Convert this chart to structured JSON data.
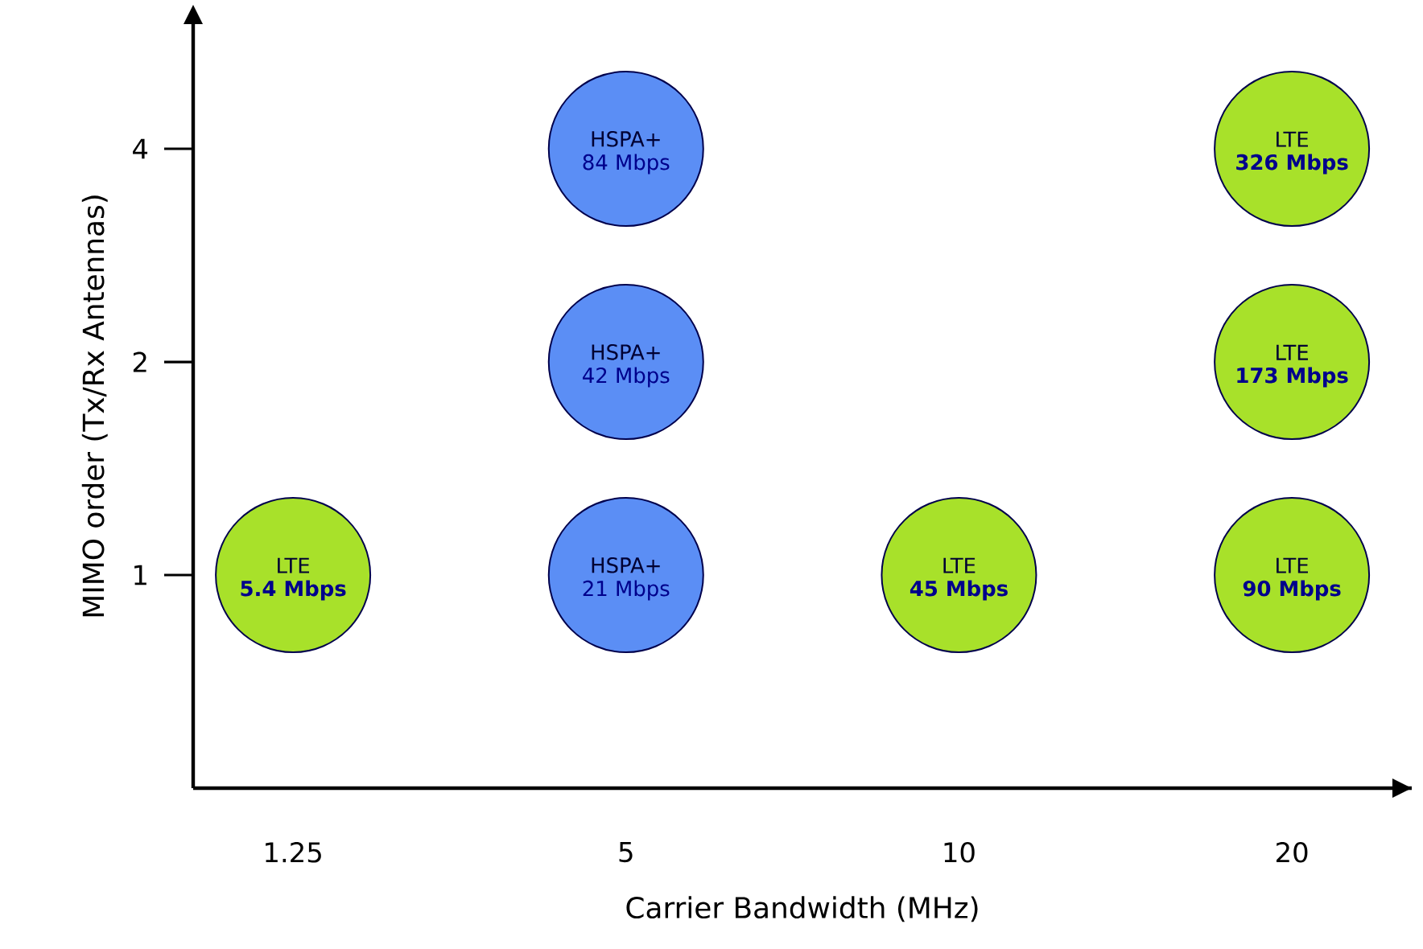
{
  "chart_data": {
    "type": "scatter",
    "xlabel": "Carrier Bandwidth (MHz)",
    "ylabel": "MIMO order (Tx/Rx Antennas)",
    "categories": [
      "1.25",
      "5",
      "10",
      "20"
    ],
    "log": "y",
    "ylim": [
      0.5,
      6
    ],
    "yticks": [
      1,
      2,
      4
    ],
    "series": [
      {
        "name": "HSPA+",
        "color": "#5b8ef5",
        "x": [
          "5",
          "5",
          "5"
        ],
        "values": [
          1,
          2,
          4
        ]
      },
      {
        "name": "LTE",
        "color": "#a8e12a",
        "x": [
          "1.25",
          "10",
          "20",
          "20",
          "20"
        ],
        "values": [
          1,
          1,
          1,
          2,
          4
        ]
      }
    ],
    "annotations": [
      {
        "text": "21 Mbps",
        "x": "5",
        "y": 1
      },
      {
        "text": "42 Mbps",
        "x": "5",
        "y": 2
      },
      {
        "text": "84 Mbps",
        "x": "5",
        "y": 4
      },
      {
        "text": "5.4 Mbps",
        "x": "1.25",
        "y": 1
      },
      {
        "text": "45 Mbps",
        "x": "10",
        "y": 1
      },
      {
        "text": "90 Mbps",
        "x": "20",
        "y": 1
      },
      {
        "text": "173 Mbps",
        "x": "20",
        "y": 2
      },
      {
        "text": "326 Mbps",
        "x": "20",
        "y": 4
      }
    ]
  }
}
